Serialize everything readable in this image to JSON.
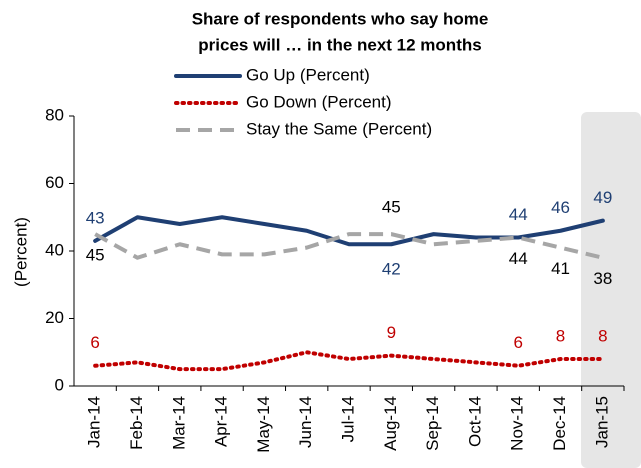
{
  "chart_data": {
    "type": "line",
    "title": [
      "Share of respondents who say home",
      "prices will … in the next 12 months"
    ],
    "y_label": "(Percent)",
    "categories": [
      "Jan-14",
      "Feb-14",
      "Mar-14",
      "Apr-14",
      "May-14",
      "Jun-14",
      "Jul-14",
      "Aug-14",
      "Sep-14",
      "Oct-14",
      "Nov-14",
      "Dec-14",
      "Jan-15"
    ],
    "ylim": [
      0,
      80
    ],
    "yticks": [
      0,
      20,
      40,
      60,
      80
    ],
    "series": [
      {
        "name": "Go Up (Percent)",
        "color": "#1f3f73",
        "dash": "solid",
        "values": [
          43,
          50,
          48,
          50,
          48,
          46,
          42,
          42,
          45,
          44,
          44,
          46,
          49
        ],
        "value_labels": [
          43,
          null,
          null,
          null,
          null,
          null,
          null,
          42,
          null,
          null,
          44,
          46,
          49
        ]
      },
      {
        "name": "Go Down (Percent)",
        "color": "#c00000",
        "dash": "dotted",
        "values": [
          6,
          7,
          5,
          5,
          7,
          10,
          8,
          9,
          8,
          7,
          6,
          8,
          8
        ],
        "value_labels": [
          6,
          null,
          null,
          null,
          null,
          null,
          null,
          9,
          null,
          null,
          6,
          8,
          8
        ]
      },
      {
        "name": "Stay the Same (Percent)",
        "color": "#a6a6a6",
        "dash": "dashed",
        "values": [
          45,
          38,
          42,
          39,
          39,
          41,
          45,
          45,
          42,
          43,
          44,
          41,
          38
        ],
        "value_labels": [
          45,
          null,
          null,
          null,
          null,
          null,
          null,
          45,
          null,
          null,
          44,
          41,
          38
        ]
      }
    ]
  }
}
